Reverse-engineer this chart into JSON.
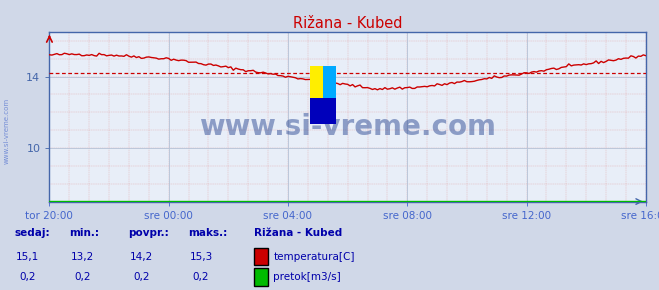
{
  "title": "Rižana - Kubed",
  "bg_color": "#d0d8e8",
  "plot_bg_color": "#e8eef8",
  "grid_color_minor": "#e08080",
  "grid_color_major": "#b8c4d8",
  "x_labels": [
    "tor 20:00",
    "sre 00:00",
    "sre 04:00",
    "sre 08:00",
    "sre 12:00",
    "sre 16:00"
  ],
  "x_ticks": [
    0,
    48,
    96,
    144,
    192,
    240
  ],
  "y_ticks": [
    10,
    14
  ],
  "ylim": [
    7.0,
    16.5
  ],
  "xlim": [
    0,
    240
  ],
  "temp_avg": 14.2,
  "temp_min": 13.2,
  "temp_max": 15.3,
  "temp_current": 15.1,
  "pretok_avg": 0.2,
  "line_color_temp": "#cc0000",
  "line_color_pretok": "#00bb00",
  "avg_line_color": "#cc0000",
  "title_color": "#cc0000",
  "axis_color": "#4466aa",
  "text_color": "#0000aa",
  "label_color": "#4466cc",
  "watermark": "www.si-vreme.com",
  "watermark_color": "#1a3a8a",
  "sidebar_text": "www.si-vreme.com",
  "footer_labels": [
    "sedaj:",
    "min.:",
    "povpr.:",
    "maks.:"
  ],
  "footer_values_temp": [
    "15,1",
    "13,2",
    "14,2",
    "15,3"
  ],
  "footer_values_pretok": [
    "0,2",
    "0,2",
    "0,2",
    "0,2"
  ],
  "legend_station": "Rižana - Kubed",
  "legend_temp_label": "temperatura[C]",
  "legend_pretok_label": "pretok[m3/s]"
}
